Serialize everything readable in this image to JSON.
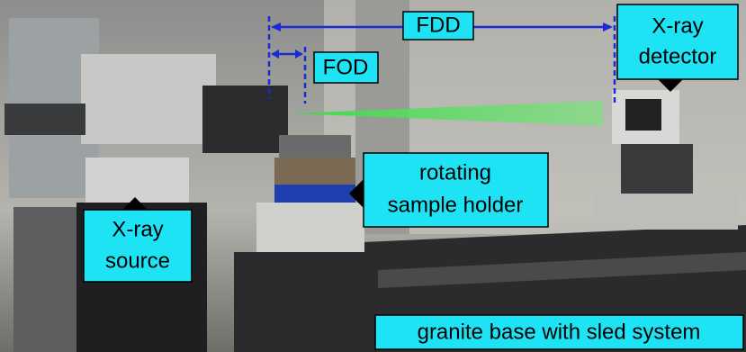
{
  "labels": {
    "fdd": "FDD",
    "fod": "FOD",
    "detector": [
      "X-ray",
      "detector"
    ],
    "sample_holder": [
      "rotating",
      "sample holder"
    ],
    "source": [
      "X-ray",
      "source"
    ],
    "base": "granite base with sled system"
  }
}
